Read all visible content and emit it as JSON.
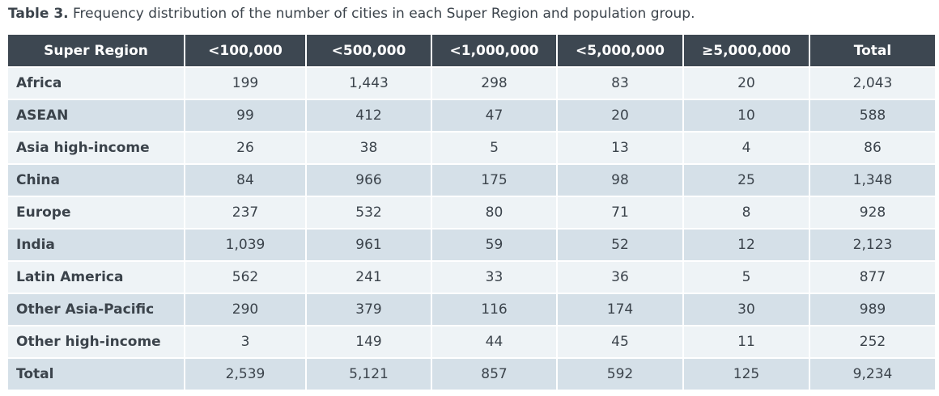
{
  "caption": {
    "label": "Table 3.",
    "text": "Frequency distribution of the number of cities in each Super Region and population group."
  },
  "headers": [
    "Super Region",
    "<100,000",
    "<500,000",
    "<1,000,000",
    "<5,000,000",
    "≥5,000,000",
    "Total"
  ],
  "rows": [
    [
      "Africa",
      "199",
      "1,443",
      "298",
      "83",
      "20",
      "2,043"
    ],
    [
      "ASEAN",
      "99",
      "412",
      "47",
      "20",
      "10",
      "588"
    ],
    [
      "Asia high-income",
      "26",
      "38",
      "5",
      "13",
      "4",
      "86"
    ],
    [
      "China",
      "84",
      "966",
      "175",
      "98",
      "25",
      "1,348"
    ],
    [
      "Europe",
      "237",
      "532",
      "80",
      "71",
      "8",
      "928"
    ],
    [
      "India",
      "1,039",
      "961",
      "59",
      "52",
      "12",
      "2,123"
    ],
    [
      "Latin America",
      "562",
      "241",
      "33",
      "36",
      "5",
      "877"
    ],
    [
      "Other Asia-Pacific",
      "290",
      "379",
      "116",
      "174",
      "30",
      "989"
    ],
    [
      "Other high-income",
      "3",
      "149",
      "44",
      "45",
      "11",
      "252"
    ],
    [
      "Total",
      "2,539",
      "5,121",
      "857",
      "592",
      "125",
      "9,234"
    ]
  ],
  "colors": {
    "header": "#3d4751",
    "row_light": "#eef3f6",
    "row_dark": "#d5e0e8"
  }
}
